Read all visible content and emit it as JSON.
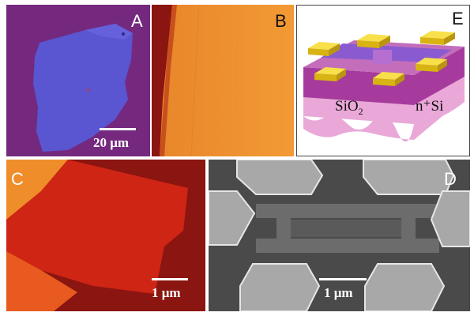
{
  "panels": {
    "a": {
      "label": "A",
      "scale": "20 μm"
    },
    "b": {
      "label": "B"
    },
    "c": {
      "label": "C",
      "scale": "1 μm"
    },
    "d": {
      "label": "D",
      "scale": "1 μm"
    },
    "e": {
      "label": "E",
      "substrate": "n⁺Si",
      "oxide_main": "SiO",
      "oxide_sub": "2"
    }
  },
  "colors": {
    "optical_bg": "#74297e",
    "flake": "#5a55d0",
    "afm_light": "#f08d2b",
    "afm_dark": "#8b1510",
    "afm_red": "#cf2515",
    "sem_bg": "#4a4a4a",
    "sem_pad": "#a8a8a8",
    "gold": "#f3cf1f",
    "oxide": "#a63b9d",
    "silicon": "#e9a8d8"
  }
}
